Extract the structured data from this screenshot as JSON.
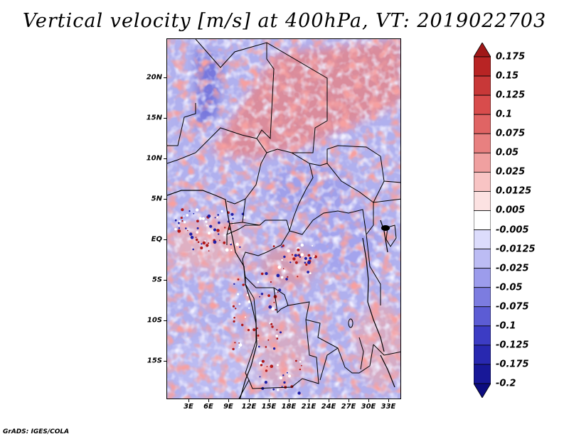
{
  "title": "Vertical velocity [m/s] at 400hPa, VT: 2019022703",
  "map": {
    "lat_labels": [
      "20N",
      "15N",
      "10N",
      "5N",
      "EQ",
      "5S",
      "10S",
      "15S"
    ],
    "lon_labels": [
      "3E",
      "6E",
      "9E",
      "12E",
      "15E",
      "18E",
      "21E",
      "24E",
      "27E",
      "30E",
      "33E"
    ]
  },
  "colorbar": {
    "labels": [
      "0.175",
      "0.15",
      "0.125",
      "0.1",
      "0.075",
      "0.05",
      "0.025",
      "0.0125",
      "0.005",
      "-0.005",
      "-0.0125",
      "-0.025",
      "-0.05",
      "-0.075",
      "-0.1",
      "-0.125",
      "-0.175",
      "-0.2"
    ],
    "colors": [
      "#a01818",
      "#b82424",
      "#c83838",
      "#d84c4c",
      "#e06464",
      "#e88080",
      "#f0a0a0",
      "#f8c4c4",
      "#fce2e2",
      "#ffffff",
      "#dcdcfc",
      "#bcbcf4",
      "#9c9cec",
      "#7c7ce0",
      "#5c5cd4",
      "#3c3cc4",
      "#2828b0",
      "#181898",
      "#0c0c80"
    ]
  },
  "credit": "GrADS: IGES/COLA"
}
